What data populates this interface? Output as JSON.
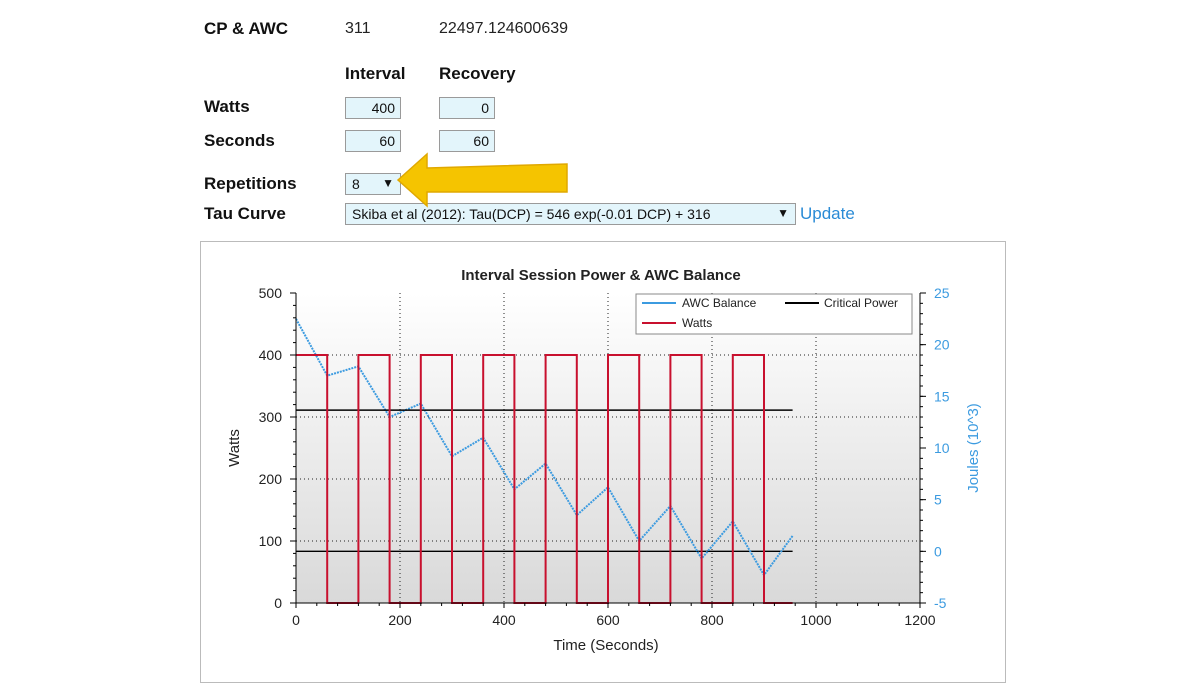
{
  "cp_awc": {
    "label": "CP & AWC",
    "cp": "311",
    "awc": "22497.124600639"
  },
  "columns": {
    "interval": "Interval",
    "recovery": "Recovery"
  },
  "watts": {
    "label": "Watts",
    "interval": "400",
    "recovery": "0"
  },
  "seconds": {
    "label": "Seconds",
    "interval": "60",
    "recovery": "60"
  },
  "repetitions": {
    "label": "Repetitions",
    "value": "8"
  },
  "tau": {
    "label": "Tau Curve",
    "value": "Skiba et al (2012): Tau(DCP) = 546 exp(-0.01 DCP) + 316",
    "update_label": "Update"
  },
  "colors": {
    "awc_line": "#3c9be0",
    "watts_line": "#c8102e",
    "critical_line": "#000000",
    "annotation_arrow": "#f5c400",
    "input_bg": "#e3f5fb",
    "link": "#2a8bd6"
  },
  "icons": {
    "dropdown": "dropdown-arrow-icon",
    "annotation": "yellow-arrow-icon"
  },
  "chart_data": {
    "type": "line",
    "title": "Interval Session Power & AWC Balance",
    "xlabel": "Time (Seconds)",
    "ylabel": "Watts",
    "y2label": "Joules (10^3)",
    "xlim": [
      0,
      1200
    ],
    "ylim": [
      0,
      500
    ],
    "y2lim": [
      -5,
      25
    ],
    "xticks": [
      "0",
      "200",
      "400",
      "600",
      "800",
      "1000",
      "1200"
    ],
    "yticks": [
      "0",
      "100",
      "200",
      "300",
      "400",
      "500"
    ],
    "y2ticks": [
      "-5",
      "0",
      "5",
      "10",
      "15",
      "20",
      "25"
    ],
    "grid": true,
    "legend_position": "top-right",
    "series": [
      {
        "name": "AWC Balance",
        "axis": "right",
        "x": [
          0,
          60,
          120,
          180,
          240,
          300,
          360,
          420,
          480,
          540,
          600,
          660,
          720,
          780,
          840,
          900,
          955
        ],
        "y": [
          22.5,
          17.0,
          17.9,
          13.0,
          14.3,
          9.2,
          11.0,
          6.0,
          8.5,
          3.5,
          6.2,
          1.0,
          4.4,
          -0.7,
          2.9,
          -2.3,
          1.5
        ]
      },
      {
        "name": "Critical Power",
        "axis": "left",
        "x": [
          0,
          955
        ],
        "y": [
          311,
          311
        ]
      },
      {
        "name": "Watts",
        "axis": "left",
        "x": [
          0,
          60,
          60,
          120,
          120,
          180,
          180,
          240,
          240,
          300,
          300,
          360,
          360,
          420,
          420,
          480,
          480,
          540,
          540,
          600,
          600,
          660,
          660,
          720,
          720,
          780,
          780,
          840,
          840,
          900,
          900,
          955
        ],
        "y": [
          400,
          400,
          0,
          0,
          400,
          400,
          0,
          0,
          400,
          400,
          0,
          0,
          400,
          400,
          0,
          0,
          400,
          400,
          0,
          0,
          400,
          400,
          0,
          0,
          400,
          400,
          0,
          0,
          400,
          400,
          0,
          0
        ]
      }
    ],
    "zero_reference": {
      "axis": "right",
      "x": [
        0,
        955
      ],
      "y": [
        0,
        0
      ]
    }
  }
}
